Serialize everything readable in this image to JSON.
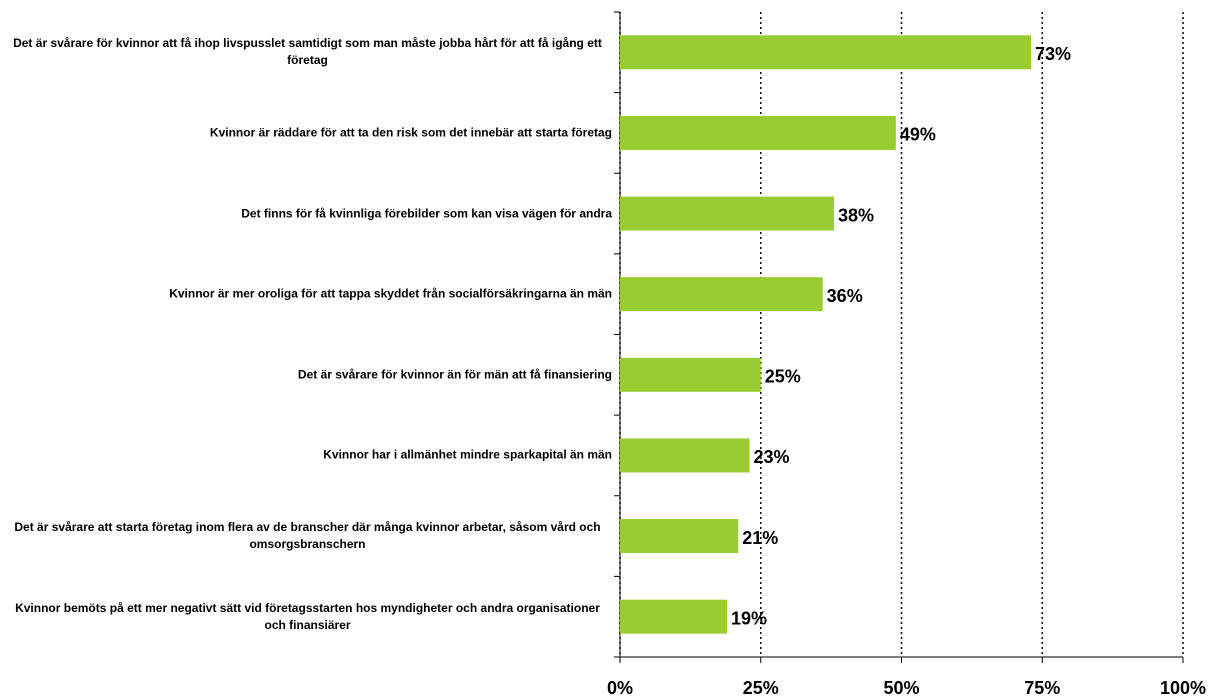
{
  "chart_data": {
    "type": "bar",
    "orientation": "horizontal",
    "categories": [
      "Det är svårare för kvinnor att få ihop livspusslet samtidigt som man måste jobba hårt för att få igång ett företag",
      "Kvinnor är räddare för att ta den risk som det innebär att starta företag",
      "Det finns för få kvinnliga förebilder som kan visa vägen för andra",
      "Kvinnor är mer oroliga för att tappa skyddet från socialförsäkringarna än män",
      "Det är svårare för kvinnor än för män att få finansiering",
      "Kvinnor har i allmänhet mindre sparkapital än män",
      "Det är svårare att starta företag inom flera av de branscher där många kvinnor arbetar, såsom vård och omsorgsbranschern",
      "Kvinnor bemöts på ett mer negativt sätt vid företagsstarten hos myndigheter och andra organisationer och finansiärer"
    ],
    "values": [
      73,
      49,
      38,
      36,
      25,
      23,
      21,
      19
    ],
    "value_labels": [
      "73%",
      "49%",
      "38%",
      "36%",
      "25%",
      "23%",
      "21%",
      "19%"
    ],
    "color": "#99cc33",
    "xlim": [
      0,
      100
    ],
    "xticks": [
      {
        "value": 0,
        "label": "0%"
      },
      {
        "value": 25,
        "label": "25%"
      },
      {
        "value": 50,
        "label": "50%"
      },
      {
        "value": 75,
        "label": "75%"
      },
      {
        "value": 100,
        "label": "100%"
      }
    ],
    "grid": true
  }
}
